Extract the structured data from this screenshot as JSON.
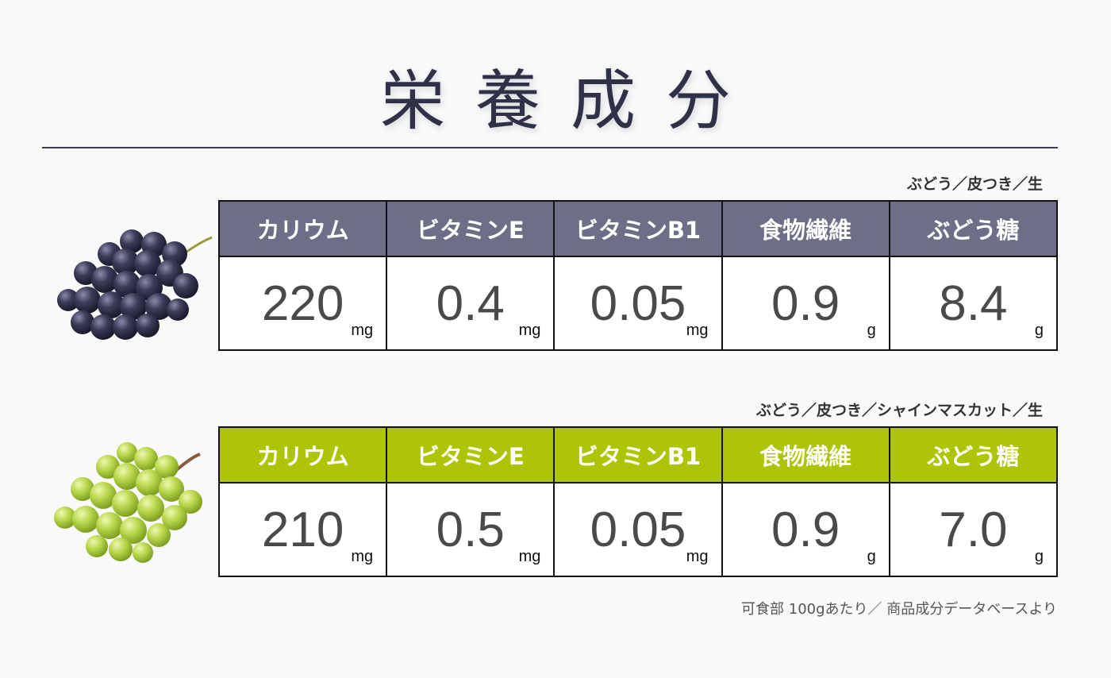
{
  "title": "栄養成分",
  "sections": [
    {
      "caption": "ぶどう／皮つき／生",
      "header_color": "#6c6f85",
      "image": "purple-grape-bunch-icon",
      "headers": [
        "カリウム",
        "ビタミンE",
        "ビタミンB1",
        "食物繊維",
        "ぶどう糖"
      ],
      "values": [
        "220",
        "0.4",
        "0.05",
        "0.9",
        "8.4"
      ],
      "units": [
        "mg",
        "mg",
        "mg",
        "g",
        "g"
      ]
    },
    {
      "caption": "ぶどう／皮つき／シャインマスカット／生",
      "header_color": "#aec406",
      "image": "green-grape-bunch-icon",
      "headers": [
        "カリウム",
        "ビタミンE",
        "ビタミンB1",
        "食物繊維",
        "ぶどう糖"
      ],
      "values": [
        "210",
        "0.5",
        "0.05",
        "0.9",
        "7.0"
      ],
      "units": [
        "mg",
        "mg",
        "mg",
        "g",
        "g"
      ]
    }
  ],
  "footnote": "可食部 100gあたり／ 商品成分データベースより"
}
